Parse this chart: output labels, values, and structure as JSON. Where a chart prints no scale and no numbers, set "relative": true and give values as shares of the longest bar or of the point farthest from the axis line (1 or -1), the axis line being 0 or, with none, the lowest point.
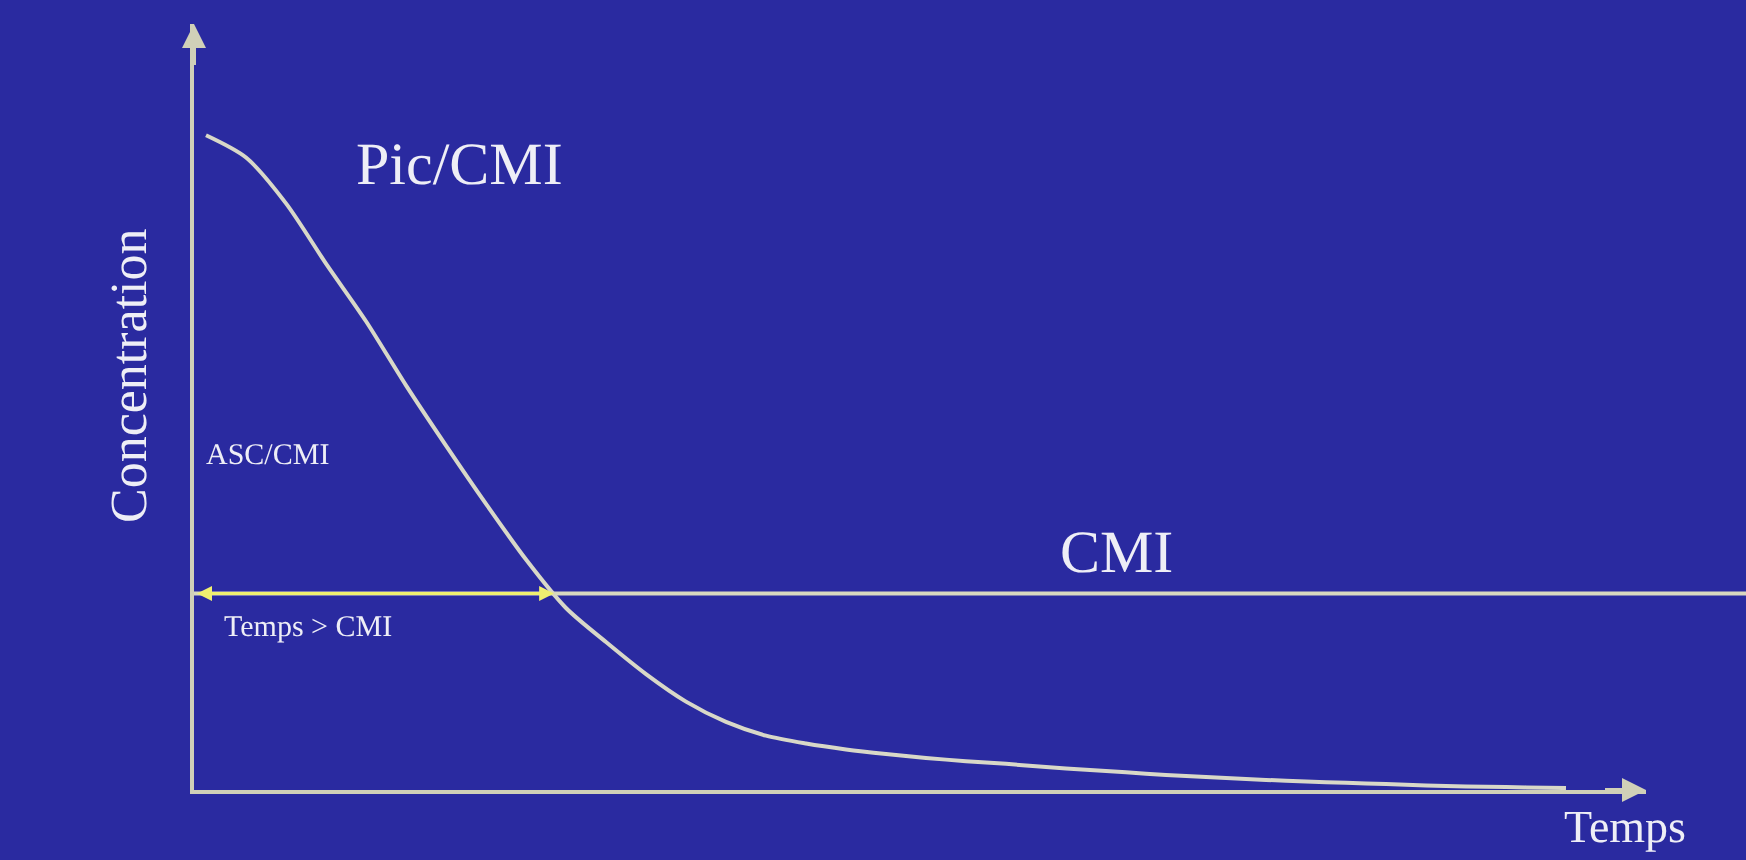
{
  "chart_data": {
    "type": "line",
    "relative": true,
    "xlabel": "Temps",
    "ylabel": "Concentration",
    "categories": [
      null,
      null,
      null,
      null,
      null,
      null,
      null,
      null,
      null,
      null,
      null,
      null,
      null,
      null,
      null,
      null,
      null,
      null,
      null,
      null,
      null,
      null,
      null,
      null,
      null,
      null,
      null,
      null,
      null,
      null,
      null,
      null,
      null,
      null,
      null
    ],
    "series": [
      {
        "color": "#d8d8c8",
        "values": [
          1.0,
          0.966,
          0.896,
          0.804,
          0.716,
          0.618,
          0.526,
          0.437,
          0.352,
          0.278,
          0.226,
          0.177,
          0.135,
          0.104,
          0.083,
          0.071,
          0.062,
          0.055,
          0.049,
          0.044,
          0.04,
          0.035,
          0.031,
          0.027,
          0.023,
          0.02,
          0.017,
          0.014,
          0.012,
          0.01,
          0.008,
          0.006,
          0.005,
          0.004,
          0.003
        ]
      }
    ],
    "ref_lines": [
      {
        "axis": "y",
        "value": 0.3,
        "label": "CMI",
        "color": "#d8d8c0"
      }
    ],
    "annotations": [
      "Pic/CMI",
      "ASC/CMI",
      "Temps > CMI"
    ]
  }
}
